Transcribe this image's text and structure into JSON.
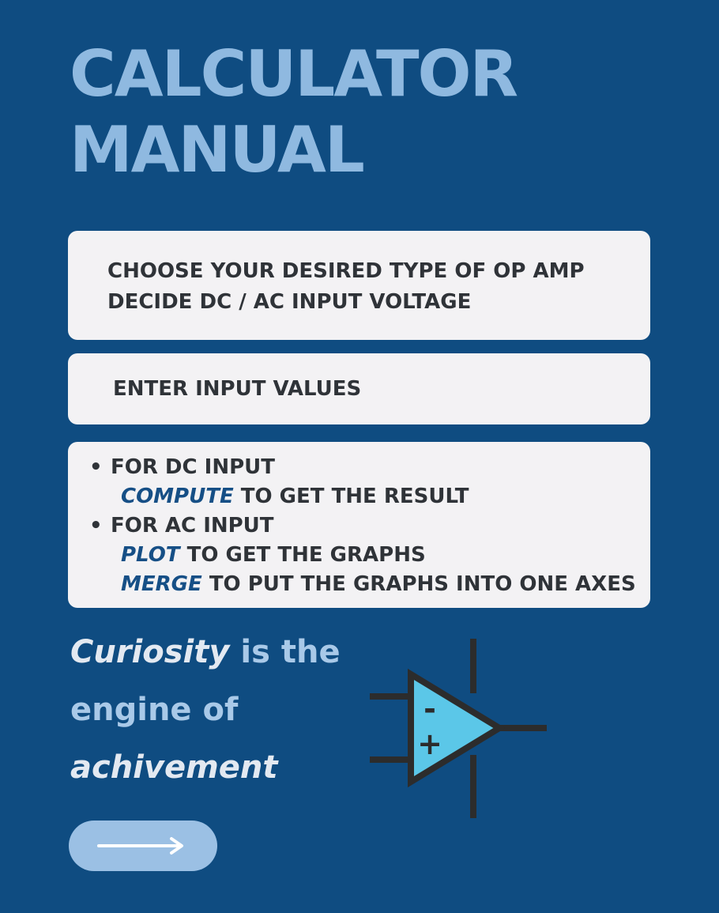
{
  "title": {
    "line1": "CALCULATOR",
    "line2": "MANUAL"
  },
  "steps": {
    "step1": {
      "line1": "CHOOSE YOUR DESIRED TYPE OF OP AMP",
      "line2": "DECIDE DC / AC INPUT VOLTAGE"
    },
    "step2": {
      "line1": "ENTER INPUT VALUES"
    },
    "step3": {
      "bullet_symbol": "•",
      "dc_heading": "FOR DC INPUT",
      "compute_keyword": "COMPUTE",
      "compute_text": " TO GET THE RESULT",
      "ac_heading": "FOR AC INPUT",
      "plot_keyword": "PLOT",
      "plot_text": " TO GET THE GRAPHS",
      "merge_keyword": "MERGE",
      "merge_text": " TO PUT THE GRAPHS INTO ONE AXES"
    }
  },
  "quote": {
    "word1": "Curiosity",
    "rest1": " is the",
    "line2": "engine of",
    "word3": "achivement"
  },
  "opamp_symbol": {
    "minus_sign": "-",
    "plus_sign": "+"
  },
  "icons": {
    "opamp": "op-amp-icon",
    "next": "right-arrow-icon"
  },
  "colors": {
    "background": "#0f4c81",
    "title": "#8fb9e0",
    "card": "#f3f2f4",
    "keyword": "#164f86",
    "triangle_fill": "#5bc7e8",
    "button": "#9bc0e4"
  }
}
